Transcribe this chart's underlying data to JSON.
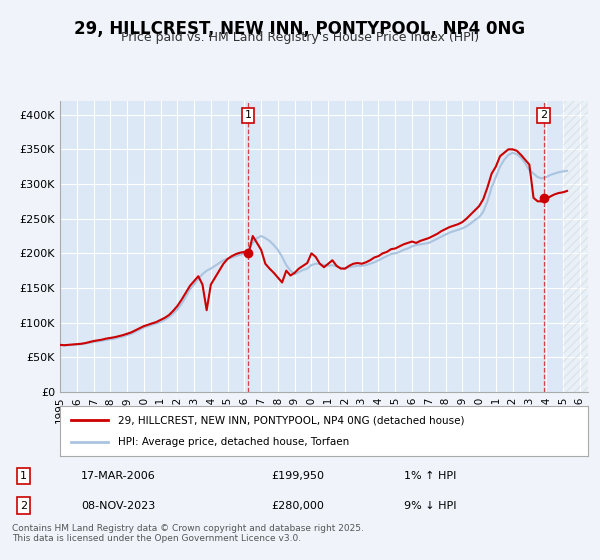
{
  "title": "29, HILLCREST, NEW INN, PONTYPOOL, NP4 0NG",
  "subtitle": "Price paid vs. HM Land Registry's House Price Index (HPI)",
  "title_fontsize": 12,
  "subtitle_fontsize": 9,
  "background_color": "#f0f4fa",
  "plot_bg_color": "#dce8f5",
  "grid_color": "#ffffff",
  "hpi_line_color": "#aac4e0",
  "price_line_color": "#cc0000",
  "sale1_date": "17-MAR-2006",
  "sale1_price": 199950,
  "sale1_label": "1",
  "sale1_hpi_pct": "1%",
  "sale1_hpi_dir": "↑",
  "sale2_date": "08-NOV-2023",
  "sale2_price": 280000,
  "sale2_label": "2",
  "sale2_hpi_pct": "9%",
  "sale2_hpi_dir": "↓",
  "legend_label1": "29, HILLCREST, NEW INN, PONTYPOOL, NP4 0NG (detached house)",
  "legend_label2": "HPI: Average price, detached house, Torfaen",
  "footer": "Contains HM Land Registry data © Crown copyright and database right 2025.\nThis data is licensed under the Open Government Licence v3.0.",
  "ylim": [
    0,
    420000
  ],
  "xlim_start": 1995.0,
  "xlim_end": 2026.5,
  "sale1_x": 2006.21,
  "sale2_x": 2023.86,
  "hpi_data_x": [
    1995.0,
    1995.25,
    1995.5,
    1995.75,
    1996.0,
    1996.25,
    1996.5,
    1996.75,
    1997.0,
    1997.25,
    1997.5,
    1997.75,
    1998.0,
    1998.25,
    1998.5,
    1998.75,
    1999.0,
    1999.25,
    1999.5,
    1999.75,
    2000.0,
    2000.25,
    2000.5,
    2000.75,
    2001.0,
    2001.25,
    2001.5,
    2001.75,
    2002.0,
    2002.25,
    2002.5,
    2002.75,
    2003.0,
    2003.25,
    2003.5,
    2003.75,
    2004.0,
    2004.25,
    2004.5,
    2004.75,
    2005.0,
    2005.25,
    2005.5,
    2005.75,
    2006.0,
    2006.25,
    2006.5,
    2006.75,
    2007.0,
    2007.25,
    2007.5,
    2007.75,
    2008.0,
    2008.25,
    2008.5,
    2008.75,
    2009.0,
    2009.25,
    2009.5,
    2009.75,
    2010.0,
    2010.25,
    2010.5,
    2010.75,
    2011.0,
    2011.25,
    2011.5,
    2011.75,
    2012.0,
    2012.25,
    2012.5,
    2012.75,
    2013.0,
    2013.25,
    2013.5,
    2013.75,
    2014.0,
    2014.25,
    2014.5,
    2014.75,
    2015.0,
    2015.25,
    2015.5,
    2015.75,
    2016.0,
    2016.25,
    2016.5,
    2016.75,
    2017.0,
    2017.25,
    2017.5,
    2017.75,
    2018.0,
    2018.25,
    2018.5,
    2018.75,
    2019.0,
    2019.25,
    2019.5,
    2019.75,
    2020.0,
    2020.25,
    2020.5,
    2020.75,
    2021.0,
    2021.25,
    2021.5,
    2021.75,
    2022.0,
    2022.25,
    2022.5,
    2022.75,
    2023.0,
    2023.25,
    2023.5,
    2023.75,
    2024.0,
    2024.25,
    2024.5,
    2024.75,
    2025.0,
    2025.25
  ],
  "hpi_data_y": [
    68000,
    67000,
    67500,
    68000,
    68500,
    69000,
    70000,
    71000,
    72000,
    73000,
    74000,
    75000,
    76000,
    77000,
    78500,
    80000,
    82000,
    84000,
    87000,
    90000,
    93000,
    95000,
    97000,
    99000,
    101000,
    104000,
    108000,
    113000,
    119000,
    127000,
    137000,
    148000,
    155000,
    163000,
    170000,
    175000,
    178000,
    182000,
    186000,
    190000,
    192000,
    194000,
    196000,
    198000,
    200000,
    205000,
    215000,
    222000,
    225000,
    222000,
    218000,
    212000,
    205000,
    195000,
    183000,
    175000,
    170000,
    173000,
    176000,
    178000,
    183000,
    185000,
    185000,
    183000,
    182000,
    183000,
    181000,
    179000,
    178000,
    180000,
    181000,
    182000,
    182000,
    183000,
    185000,
    187000,
    190000,
    193000,
    196000,
    199000,
    200000,
    202000,
    205000,
    207000,
    210000,
    212000,
    213000,
    214000,
    215000,
    218000,
    221000,
    224000,
    227000,
    230000,
    232000,
    234000,
    236000,
    239000,
    243000,
    248000,
    252000,
    260000,
    275000,
    295000,
    310000,
    325000,
    335000,
    342000,
    345000,
    343000,
    338000,
    330000,
    320000,
    315000,
    310000,
    308000,
    310000,
    313000,
    315000,
    317000,
    318000,
    319000
  ],
  "price_data_x": [
    1995.0,
    1995.25,
    1995.5,
    1995.75,
    1996.0,
    1996.25,
    1996.5,
    1996.75,
    1997.0,
    1997.25,
    1997.5,
    1997.75,
    1998.0,
    1998.25,
    1998.5,
    1998.75,
    1999.0,
    1999.25,
    1999.5,
    1999.75,
    2000.0,
    2000.25,
    2000.5,
    2000.75,
    2001.0,
    2001.25,
    2001.5,
    2001.75,
    2002.0,
    2002.25,
    2002.5,
    2002.75,
    2003.0,
    2003.25,
    2003.5,
    2003.75,
    2004.0,
    2004.25,
    2004.5,
    2004.75,
    2005.0,
    2005.25,
    2005.5,
    2005.75,
    2006.0,
    2006.25,
    2006.5,
    2006.75,
    2007.0,
    2007.25,
    2007.5,
    2007.75,
    2008.0,
    2008.25,
    2008.5,
    2008.75,
    2009.0,
    2009.25,
    2009.5,
    2009.75,
    2010.0,
    2010.25,
    2010.5,
    2010.75,
    2011.0,
    2011.25,
    2011.5,
    2011.75,
    2012.0,
    2012.25,
    2012.5,
    2012.75,
    2013.0,
    2013.25,
    2013.5,
    2013.75,
    2014.0,
    2014.25,
    2014.5,
    2014.75,
    2015.0,
    2015.25,
    2015.5,
    2015.75,
    2016.0,
    2016.25,
    2016.5,
    2016.75,
    2017.0,
    2017.25,
    2017.5,
    2017.75,
    2018.0,
    2018.25,
    2018.5,
    2018.75,
    2019.0,
    2019.25,
    2019.5,
    2019.75,
    2020.0,
    2020.25,
    2020.5,
    2020.75,
    2021.0,
    2021.25,
    2021.5,
    2021.75,
    2022.0,
    2022.25,
    2022.5,
    2022.75,
    2023.0,
    2023.25,
    2023.5,
    2023.75,
    2024.0,
    2024.25,
    2024.5,
    2024.75,
    2025.0,
    2025.25
  ],
  "price_data_y": [
    68000,
    67500,
    68000,
    68500,
    69000,
    69500,
    70500,
    72000,
    73500,
    74500,
    75500,
    77000,
    78000,
    79000,
    80500,
    82000,
    84000,
    86000,
    89000,
    92000,
    95000,
    97000,
    99000,
    101000,
    104000,
    107000,
    111000,
    117000,
    124000,
    133000,
    143000,
    153000,
    160000,
    167000,
    155000,
    118000,
    155000,
    165000,
    175000,
    185000,
    192000,
    196000,
    199000,
    201000,
    202000,
    199950,
    225000,
    215000,
    205000,
    185000,
    178000,
    172000,
    165000,
    158000,
    175000,
    168000,
    172000,
    178000,
    182000,
    186000,
    200000,
    195000,
    185000,
    180000,
    185000,
    190000,
    182000,
    178000,
    178000,
    182000,
    185000,
    186000,
    185000,
    187000,
    190000,
    194000,
    196000,
    200000,
    202000,
    206000,
    207000,
    210000,
    213000,
    215000,
    217000,
    215000,
    218000,
    220000,
    222000,
    225000,
    228000,
    232000,
    235000,
    238000,
    240000,
    242000,
    245000,
    250000,
    256000,
    262000,
    268000,
    278000,
    295000,
    315000,
    325000,
    340000,
    345000,
    350000,
    350000,
    348000,
    342000,
    335000,
    328000,
    280000,
    275000,
    275000,
    278000,
    282000,
    285000,
    287000,
    288000,
    290000
  ],
  "yticks": [
    0,
    50000,
    100000,
    150000,
    200000,
    250000,
    300000,
    350000,
    400000
  ],
  "ytick_labels": [
    "£0",
    "£50K",
    "£100K",
    "£150K",
    "£200K",
    "£250K",
    "£300K",
    "£350K",
    "£400K"
  ],
  "xticks": [
    1995,
    1996,
    1997,
    1998,
    1999,
    2000,
    2001,
    2002,
    2003,
    2004,
    2005,
    2006,
    2007,
    2008,
    2009,
    2010,
    2011,
    2012,
    2013,
    2014,
    2015,
    2016,
    2017,
    2018,
    2019,
    2020,
    2021,
    2022,
    2023,
    2024,
    2025,
    2026
  ]
}
